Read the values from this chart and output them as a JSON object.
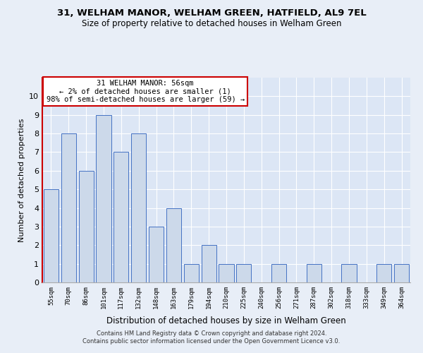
{
  "title": "31, WELHAM MANOR, WELHAM GREEN, HATFIELD, AL9 7EL",
  "subtitle": "Size of property relative to detached houses in Welham Green",
  "xlabel": "Distribution of detached houses by size in Welham Green",
  "ylabel": "Number of detached properties",
  "categories": [
    "55sqm",
    "70sqm",
    "86sqm",
    "101sqm",
    "117sqm",
    "132sqm",
    "148sqm",
    "163sqm",
    "179sqm",
    "194sqm",
    "210sqm",
    "225sqm",
    "240sqm",
    "256sqm",
    "271sqm",
    "287sqm",
    "302sqm",
    "318sqm",
    "333sqm",
    "349sqm",
    "364sqm"
  ],
  "values": [
    5,
    8,
    6,
    9,
    7,
    8,
    3,
    4,
    1,
    2,
    1,
    1,
    0,
    1,
    0,
    1,
    0,
    1,
    0,
    1,
    1
  ],
  "bar_color": "#ccd9ea",
  "bar_edge_color": "#4472c4",
  "annotation_text": "31 WELHAM MANOR: 56sqm\n← 2% of detached houses are smaller (1)\n98% of semi-detached houses are larger (59) →",
  "annotation_box_color": "#ffffff",
  "annotation_border_color": "#cc0000",
  "ylim": [
    0,
    11
  ],
  "yticks": [
    0,
    1,
    2,
    3,
    4,
    5,
    6,
    7,
    8,
    9,
    10
  ],
  "footer_line1": "Contains HM Land Registry data © Crown copyright and database right 2024.",
  "footer_line2": "Contains public sector information licensed under the Open Government Licence v3.0.",
  "background_color": "#e8eef7",
  "plot_bg_color": "#dce6f5",
  "left_spine_color": "#cc0000"
}
